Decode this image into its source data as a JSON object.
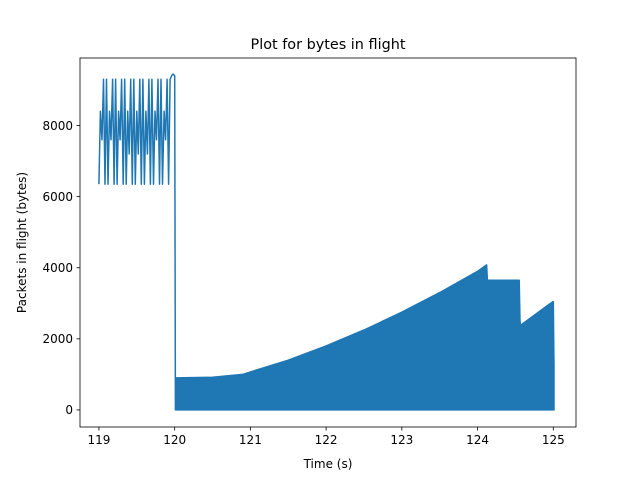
{
  "chart_data": {
    "type": "line",
    "title": "Plot for bytes in flight",
    "xlabel": "Time (s)",
    "ylabel": "Packets in flight (bytes)",
    "xlim": [
      118.75,
      125.3
    ],
    "ylim": [
      -480,
      9900
    ],
    "xticks": [
      119,
      120,
      121,
      122,
      123,
      124,
      125
    ],
    "yticks": [
      0,
      2000,
      4000,
      6000,
      8000
    ],
    "grid": false,
    "series": [
      {
        "color": "#1f77b4",
        "x": [
          119.0,
          119.02,
          119.04,
          119.06,
          119.08,
          119.1,
          119.12,
          119.14,
          119.16,
          119.18,
          119.2,
          119.22,
          119.24,
          119.26,
          119.28,
          119.3,
          119.32,
          119.34,
          119.36,
          119.38,
          119.4,
          119.42,
          119.44,
          119.46,
          119.48,
          119.5,
          119.52,
          119.54,
          119.56,
          119.58,
          119.6,
          119.62,
          119.64,
          119.66,
          119.68,
          119.7,
          119.72,
          119.74,
          119.76,
          119.78,
          119.8,
          119.82,
          119.84,
          119.86,
          119.88,
          119.9,
          119.92,
          119.94,
          119.96,
          119.98,
          120.0,
          120.01,
          120.02
        ],
        "y": [
          6350,
          8400,
          7600,
          9300,
          6350,
          9300,
          6350,
          8400,
          7600,
          9300,
          6350,
          9300,
          6350,
          8400,
          7600,
          9300,
          6350,
          9300,
          6350,
          8400,
          7200,
          9300,
          6350,
          9300,
          6350,
          8400,
          7200,
          9300,
          6350,
          9300,
          6350,
          8400,
          7200,
          9300,
          6350,
          9300,
          6350,
          8400,
          7600,
          9300,
          6350,
          9300,
          6350,
          8400,
          7600,
          9300,
          6350,
          9300,
          9400,
          9450,
          9400,
          0,
          900
        ]
      },
      {
        "color": "#1f77b4",
        "fill": "area",
        "baseline": 0,
        "x": [
          120.02,
          120.5,
          120.9,
          121.0,
          121.5,
          122.0,
          122.5,
          123.0,
          123.5,
          124.0,
          124.12,
          124.13,
          124.55,
          124.56,
          124.57,
          124.58,
          124.9,
          125.0,
          125.01
        ],
        "y": [
          900,
          920,
          1000,
          1070,
          1400,
          1800,
          2250,
          2750,
          3300,
          3900,
          4080,
          3650,
          3650,
          2500,
          2300,
          2400,
          2900,
          3050,
          1200
        ]
      }
    ]
  }
}
